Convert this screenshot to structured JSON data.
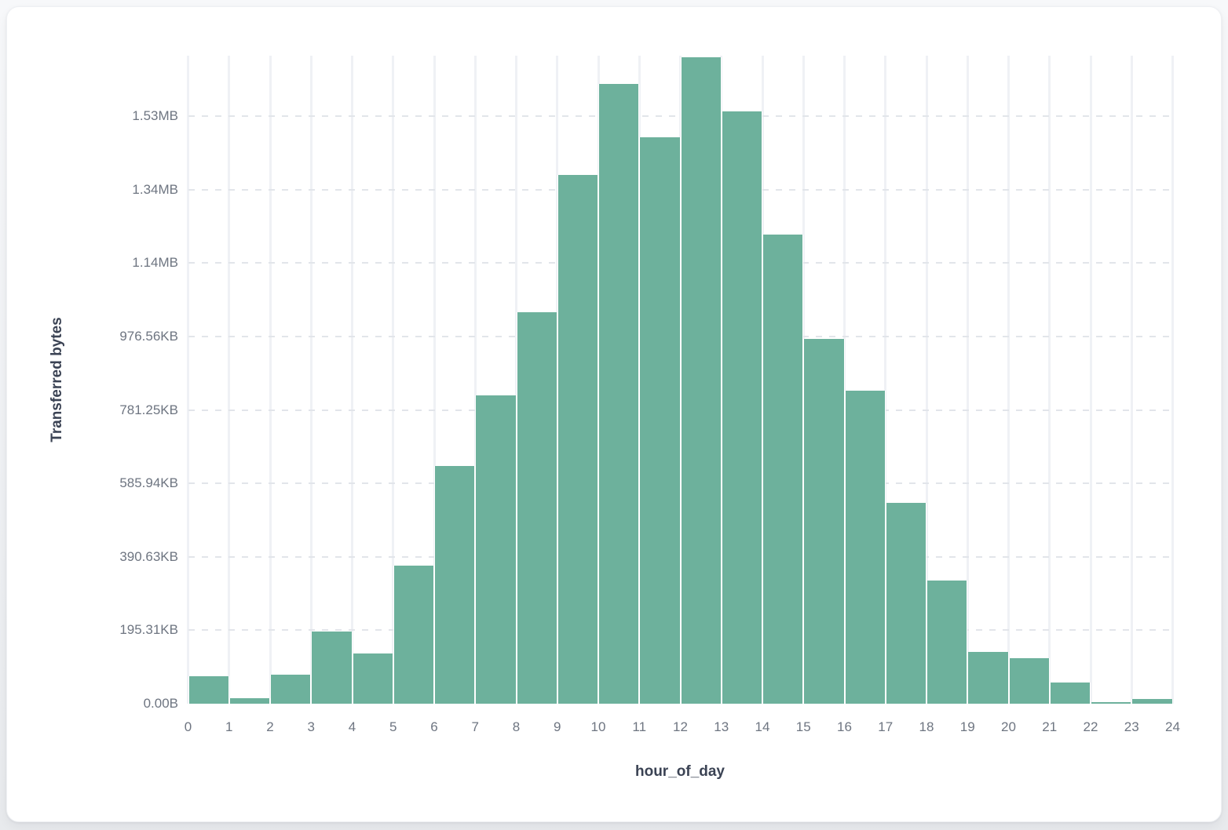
{
  "colors": {
    "bar_fill": "#6db19c",
    "bar_gap": "#ffffff",
    "vertical_gridline": "#eff1f5",
    "horizontal_gridline_dash": "#e2e5ea",
    "tick_label_text": "#6e7581",
    "axis_title_text": "#3b4354",
    "card_background": "#ffffff",
    "page_background": "#eef0f3"
  },
  "chart_data": {
    "type": "bar",
    "title": "",
    "xlabel": "hour_of_day",
    "ylabel": "Transferred bytes",
    "legend": "none",
    "grid": {
      "horizontal": "dashed",
      "vertical": "solid"
    },
    "xlim": [
      0,
      24
    ],
    "ylim_bytes": [
      0,
      1765000
    ],
    "x_bin_width": 1,
    "x_bin_starts": [
      0,
      1,
      2,
      3,
      4,
      5,
      6,
      7,
      8,
      9,
      10,
      11,
      12,
      13,
      14,
      15,
      16,
      17,
      18,
      19,
      20,
      21,
      22,
      23
    ],
    "values_bytes": [
      75000,
      15000,
      79000,
      196000,
      137000,
      376000,
      648000,
      840000,
      1066000,
      1440000,
      1688000,
      1542000,
      1761000,
      1613000,
      1278000,
      994000,
      853000,
      546000,
      335000,
      141000,
      125000,
      57000,
      5000,
      13000
    ],
    "x_tick_labels": [
      "0",
      "1",
      "2",
      "3",
      "4",
      "5",
      "6",
      "7",
      "8",
      "9",
      "10",
      "11",
      "12",
      "13",
      "14",
      "15",
      "16",
      "17",
      "18",
      "19",
      "20",
      "21",
      "22",
      "23",
      "24"
    ],
    "y_ticks": [
      {
        "label": "0.00B",
        "bytes": 0
      },
      {
        "label": "195.31KB",
        "bytes": 200000
      },
      {
        "label": "390.63KB",
        "bytes": 400000
      },
      {
        "label": "585.94KB",
        "bytes": 600000
      },
      {
        "label": "781.25KB",
        "bytes": 800000
      },
      {
        "label": "976.56KB",
        "bytes": 1000000
      },
      {
        "label": "1.14MB",
        "bytes": 1200000
      },
      {
        "label": "1.34MB",
        "bytes": 1400000
      },
      {
        "label": "1.53MB",
        "bytes": 1600000
      }
    ]
  }
}
